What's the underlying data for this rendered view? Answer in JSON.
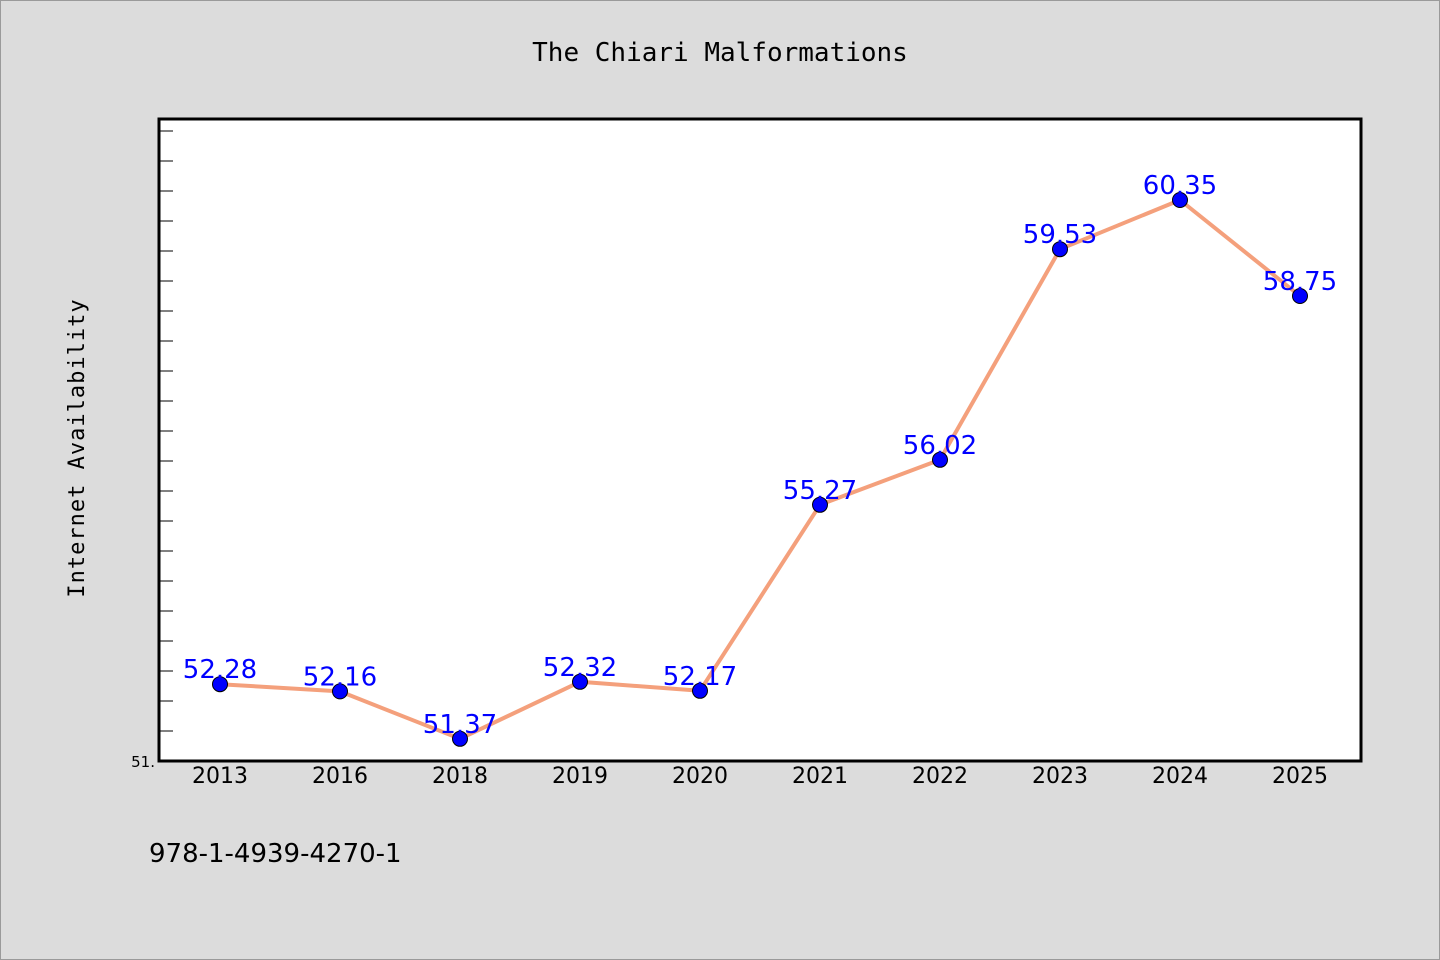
{
  "chart_data": {
    "type": "line",
    "title": "The Chiari Malformations",
    "xlabel": "",
    "ylabel": "Internet Availability",
    "categories": [
      "2013",
      "2016",
      "2018",
      "2019",
      "2020",
      "2021",
      "2022",
      "2023",
      "2024",
      "2025"
    ],
    "series": [
      {
        "values": [
          52.28,
          52.16,
          51.37,
          52.32,
          52.17,
          55.27,
          56.02,
          59.53,
          60.35,
          58.75
        ],
        "data_labels": [
          "52.28",
          "52.16",
          "51.37",
          "52.32",
          "52.17",
          "55.27",
          "56.02",
          "59.53",
          "60.35",
          "58.75"
        ],
        "line_color": "#f4a07c",
        "marker_color": "#0000ff"
      }
    ],
    "yticks": [
      "51."
    ],
    "ylim": [
      51.0,
      61.5
    ],
    "grid": false,
    "legend": "none",
    "plot_background": "#ffffff",
    "figure_background": "#dcdcdc"
  },
  "footer": {
    "text": "978-1-4939-4270-1"
  }
}
